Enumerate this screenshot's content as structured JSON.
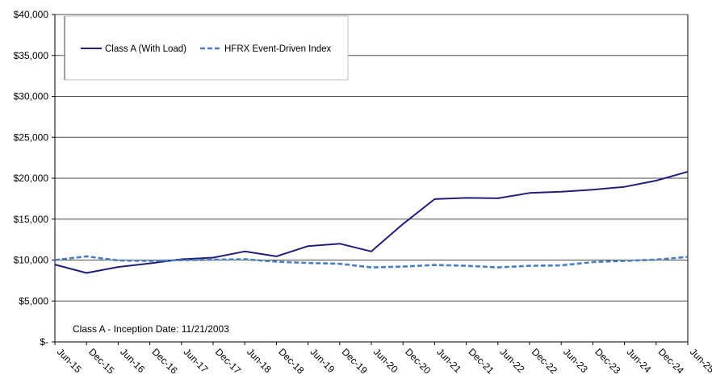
{
  "chart_data": {
    "type": "line",
    "categories": [
      "Jun-15",
      "Dec-15",
      "Jun-16",
      "Dec-16",
      "Jun-17",
      "Dec-17",
      "Jun-18",
      "Dec-18",
      "Jun-19",
      "Dec-19",
      "Jun-20",
      "Dec-20",
      "Jun-21",
      "Dec-21",
      "Jun-22",
      "Dec-22",
      "Jun-23",
      "Dec-23",
      "Jun-24",
      "Dec-24",
      "Jun-25"
    ],
    "yticks": [
      "$-",
      "$5,000",
      "$10,000",
      "$15,000",
      "$20,000",
      "$25,000",
      "$30,000",
      "$35,000",
      "$40,000"
    ],
    "ylim": [
      0,
      40000
    ],
    "grid": true,
    "legend_position": "top-left",
    "series": [
      {
        "name": "Class A (With Load)",
        "color": "#1f1f7a",
        "dash": "solid",
        "values": [
          9450,
          8420,
          9150,
          9600,
          10100,
          10300,
          11050,
          10450,
          11700,
          12000,
          11050,
          14400,
          17450,
          17600,
          17550,
          18200,
          18350,
          18600,
          18950,
          19700,
          20800
        ]
      },
      {
        "name": "HFRX Event-Driven Index",
        "color": "#4a7ebf",
        "dash": "dashed",
        "values": [
          10000,
          10450,
          9950,
          9900,
          9980,
          10050,
          10100,
          9800,
          9650,
          9550,
          9100,
          9200,
          9400,
          9300,
          9100,
          9300,
          9350,
          9750,
          9900,
          10050,
          10380
        ]
      }
    ],
    "annotation": "Class A  - Inception Date: 11/21/2003"
  }
}
